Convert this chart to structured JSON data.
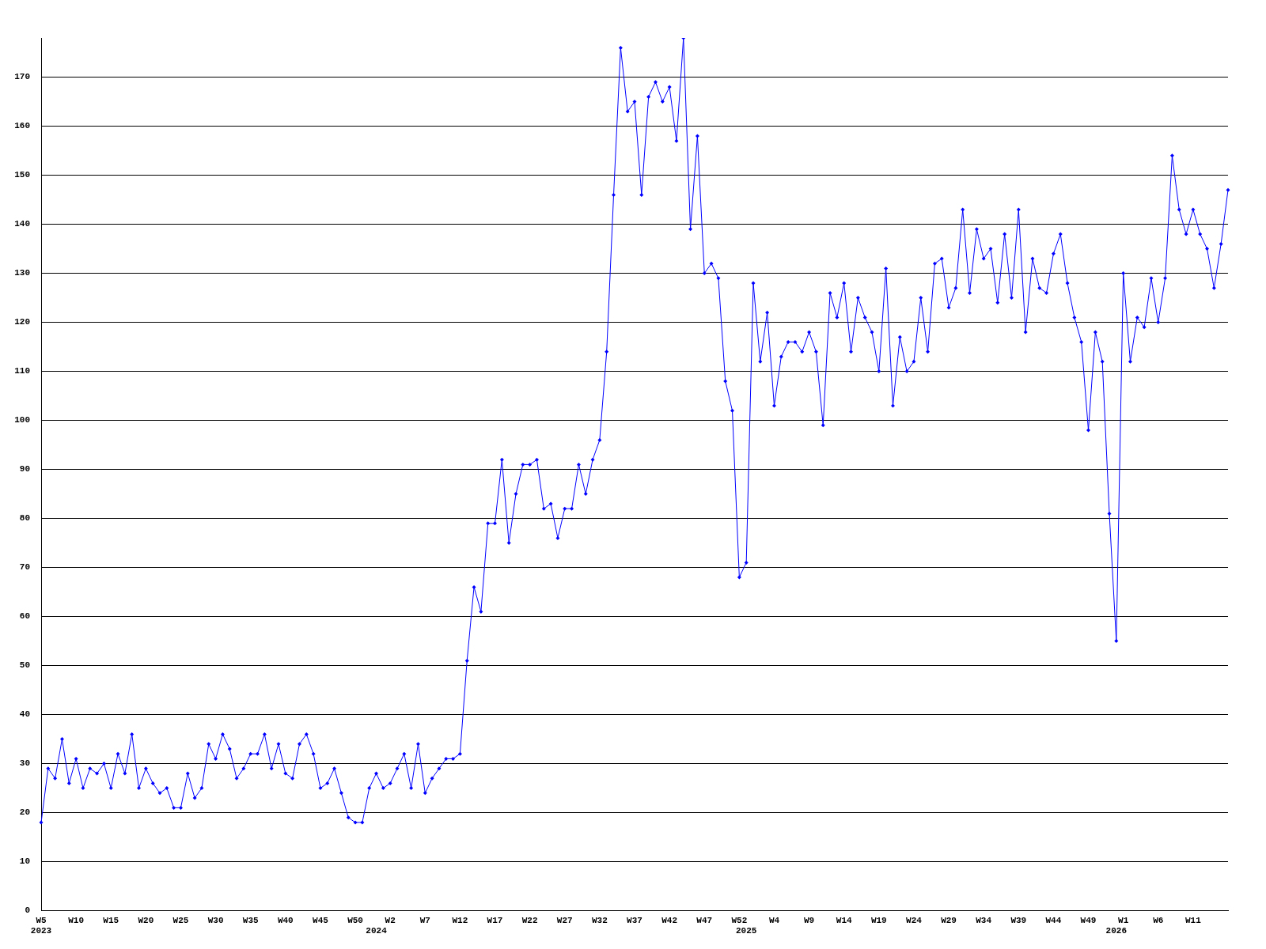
{
  "chart_data": {
    "type": "line",
    "categories": [
      "W5\n2023",
      null,
      null,
      null,
      null,
      "W10",
      null,
      null,
      null,
      null,
      "W15",
      null,
      null,
      null,
      null,
      "W20",
      null,
      null,
      null,
      null,
      "W25",
      null,
      null,
      null,
      null,
      "W30",
      null,
      null,
      null,
      null,
      "W35",
      null,
      null,
      null,
      null,
      "W40",
      null,
      null,
      null,
      null,
      "W45",
      null,
      null,
      null,
      null,
      "W50",
      null,
      null,
      "\n2024",
      null,
      "W2",
      null,
      null,
      null,
      null,
      "W7",
      null,
      null,
      null,
      null,
      "W12",
      null,
      null,
      null,
      null,
      "W17",
      null,
      null,
      null,
      null,
      "W22",
      null,
      null,
      null,
      null,
      "W27",
      null,
      null,
      null,
      null,
      "W32",
      null,
      null,
      null,
      null,
      "W37",
      null,
      null,
      null,
      null,
      "W42",
      null,
      null,
      null,
      null,
      "W47",
      null,
      null,
      null,
      null,
      "W52",
      "\n2025",
      null,
      null,
      null,
      "W4",
      null,
      null,
      null,
      null,
      "W9",
      null,
      null,
      null,
      null,
      "W14",
      null,
      null,
      null,
      null,
      "W19",
      null,
      null,
      null,
      null,
      "W24",
      null,
      null,
      null,
      null,
      "W29",
      null,
      null,
      null,
      null,
      "W34",
      null,
      null,
      null,
      null,
      "W39",
      null,
      null,
      null,
      null,
      "W44",
      null,
      null,
      null,
      null,
      "W49",
      null,
      null,
      null,
      "\n2026",
      "W1",
      null,
      null,
      null,
      null,
      "W6",
      null,
      null,
      null,
      null,
      "W11",
      null,
      null,
      null,
      null,
      null
    ],
    "values": [
      18,
      29,
      27,
      35,
      26,
      31,
      25,
      29,
      28,
      30,
      25,
      32,
      28,
      36,
      25,
      29,
      26,
      24,
      25,
      21,
      21,
      28,
      23,
      25,
      34,
      31,
      36,
      33,
      27,
      29,
      32,
      32,
      36,
      29,
      34,
      28,
      27,
      34,
      36,
      32,
      25,
      26,
      29,
      24,
      19,
      18,
      18,
      25,
      28,
      25,
      26,
      29,
      32,
      25,
      34,
      24,
      27,
      29,
      31,
      31,
      32,
      51,
      66,
      61,
      79,
      79,
      92,
      75,
      85,
      91,
      91,
      92,
      82,
      83,
      76,
      82,
      82,
      91,
      85,
      92,
      96,
      114,
      146,
      176,
      163,
      165,
      146,
      166,
      169,
      165,
      168,
      157,
      178,
      139,
      158,
      130,
      132,
      129,
      108,
      102,
      68,
      71,
      128,
      112,
      122,
      103,
      113,
      116,
      116,
      114,
      118,
      114,
      99,
      126,
      121,
      128,
      114,
      125,
      121,
      118,
      110,
      131,
      103,
      117,
      110,
      112,
      125,
      114,
      132,
      133,
      123,
      127,
      143,
      126,
      139,
      133,
      135,
      124,
      138,
      125,
      143,
      118,
      133,
      127,
      126,
      134,
      138,
      128,
      121,
      116,
      98,
      118,
      112,
      81,
      55,
      130,
      112,
      121,
      119,
      129,
      120,
      129,
      154,
      143,
      138,
      143,
      138,
      135,
      127,
      136,
      147
    ],
    "color": "#0000ff",
    "ylim": [
      0,
      178
    ],
    "yticks": [
      0,
      10,
      20,
      30,
      40,
      50,
      60,
      70,
      80,
      90,
      100,
      110,
      120,
      130,
      140,
      150,
      160,
      170
    ],
    "grid": "y",
    "marker": "diamond"
  }
}
